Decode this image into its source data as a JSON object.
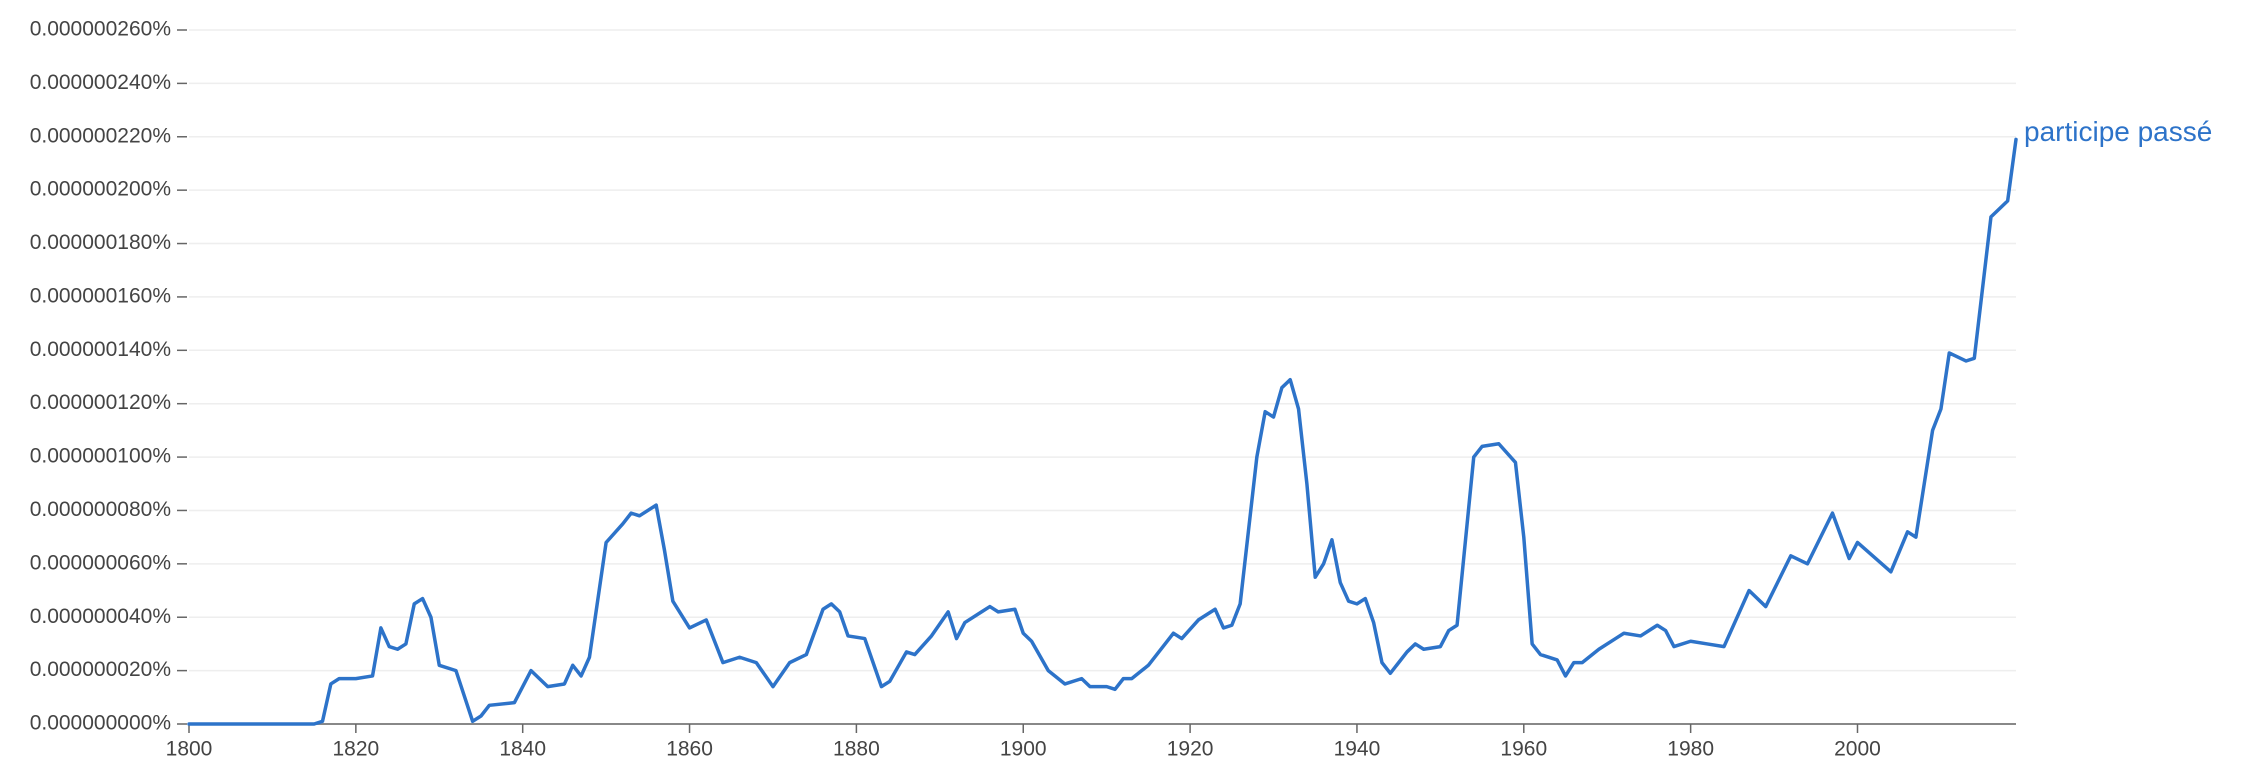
{
  "chart_data": {
    "type": "line",
    "series": [
      {
        "name": "participe passé",
        "color": "#2d73c9",
        "x": [
          1800,
          1815,
          1816,
          1817,
          1818,
          1820,
          1822,
          1823,
          1824,
          1825,
          1826,
          1827,
          1828,
          1829,
          1830,
          1832,
          1834,
          1835,
          1836,
          1839,
          1841,
          1843,
          1845,
          1846,
          1847,
          1848,
          1850,
          1852,
          1853,
          1854,
          1856,
          1857,
          1858,
          1860,
          1862,
          1864,
          1866,
          1868,
          1870,
          1872,
          1874,
          1876,
          1877,
          1878,
          1879,
          1881,
          1883,
          1884,
          1886,
          1887,
          1889,
          1891,
          1892,
          1893,
          1895,
          1896,
          1897,
          1899,
          1900,
          1901,
          1903,
          1905,
          1907,
          1908,
          1910,
          1911,
          1912,
          1913,
          1915,
          1917,
          1918,
          1919,
          1921,
          1923,
          1924,
          1925,
          1926,
          1928,
          1929,
          1930,
          1931,
          1932,
          1933,
          1934,
          1935,
          1936,
          1937,
          1938,
          1939,
          1940,
          1941,
          1942,
          1943,
          1944,
          1945,
          1946,
          1947,
          1948,
          1950,
          1951,
          1952,
          1954,
          1955,
          1957,
          1959,
          1960,
          1961,
          1962,
          1964,
          1965,
          1966,
          1967,
          1969,
          1971,
          1972,
          1974,
          1976,
          1977,
          1978,
          1980,
          1982,
          1984,
          1987,
          1989,
          1992,
          1994,
          1997,
          1999,
          2000,
          2004,
          2006,
          2007,
          2009,
          2010,
          2011,
          2013,
          2014,
          2016,
          2018,
          2019
        ],
        "values": [
          0,
          0,
          1e-09,
          1.5e-08,
          1.7e-08,
          1.7e-08,
          1.8e-08,
          3.6e-08,
          2.9e-08,
          2.8e-08,
          3e-08,
          4.5e-08,
          4.7e-08,
          4e-08,
          2.2e-08,
          2e-08,
          1e-09,
          3e-09,
          7e-09,
          8e-09,
          2e-08,
          1.4e-08,
          1.5e-08,
          2.2e-08,
          1.8e-08,
          2.5e-08,
          6.8e-08,
          7.5e-08,
          7.9e-08,
          7.8e-08,
          8.2e-08,
          6.5e-08,
          4.6e-08,
          3.6e-08,
          3.9e-08,
          2.3e-08,
          2.5e-08,
          2.3e-08,
          1.4e-08,
          2.3e-08,
          2.6e-08,
          4.3e-08,
          4.5e-08,
          4.2e-08,
          3.3e-08,
          3.2e-08,
          1.4e-08,
          1.6e-08,
          2.7e-08,
          2.6e-08,
          3.3e-08,
          4.2e-08,
          3.2e-08,
          3.8e-08,
          4.2e-08,
          4.4e-08,
          4.2e-08,
          4.3e-08,
          3.4e-08,
          3.1e-08,
          2e-08,
          1.5e-08,
          1.7e-08,
          1.4e-08,
          1.4e-08,
          1.3e-08,
          1.7e-08,
          1.7e-08,
          2.2e-08,
          3e-08,
          3.4e-08,
          3.2e-08,
          3.9e-08,
          4.3e-08,
          3.6e-08,
          3.7e-08,
          4.5e-08,
          1e-07,
          1.17e-07,
          1.15e-07,
          1.26e-07,
          1.29e-07,
          1.18e-07,
          9e-08,
          5.5e-08,
          6e-08,
          6.9e-08,
          5.3e-08,
          4.6e-08,
          4.5e-08,
          4.7e-08,
          3.8e-08,
          2.3e-08,
          1.9e-08,
          2.3e-08,
          2.7e-08,
          3e-08,
          2.8e-08,
          2.9e-08,
          3.5e-08,
          3.7e-08,
          1e-07,
          1.04e-07,
          1.05e-07,
          9.8e-08,
          7e-08,
          3e-08,
          2.6e-08,
          2.4e-08,
          1.8e-08,
          2.3e-08,
          2.3e-08,
          2.8e-08,
          3.2e-08,
          3.4e-08,
          3.3e-08,
          3.7e-08,
          3.5e-08,
          2.9e-08,
          3.1e-08,
          3e-08,
          2.9e-08,
          5e-08,
          4.4e-08,
          6.3e-08,
          6e-08,
          7.9e-08,
          6.2e-08,
          6.8e-08,
          5.7e-08,
          7.2e-08,
          7e-08,
          1.1e-07,
          1.18e-07,
          1.39e-07,
          1.36e-07,
          1.37e-07,
          1.9e-07,
          1.96e-07,
          2.19e-07
        ]
      }
    ],
    "xlim": [
      1800,
      2019
    ],
    "xticks": [
      1800,
      1820,
      1840,
      1860,
      1880,
      1900,
      1920,
      1940,
      1960,
      1980,
      2000
    ],
    "ylim": [
      0,
      2.6e-07
    ],
    "yticks": [
      {
        "value": 0,
        "label": "0.000000000%"
      },
      {
        "value": 2e-08,
        "label": "0.000000020%"
      },
      {
        "value": 4e-08,
        "label": "0.000000040%"
      },
      {
        "value": 6e-08,
        "label": "0.000000060%"
      },
      {
        "value": 8e-08,
        "label": "0.000000080%"
      },
      {
        "value": 1e-07,
        "label": "0.000000100%"
      },
      {
        "value": 1.2e-07,
        "label": "0.000000120%"
      },
      {
        "value": 1.4e-07,
        "label": "0.000000140%"
      },
      {
        "value": 1.6e-07,
        "label": "0.000000160%"
      },
      {
        "value": 1.8e-07,
        "label": "0.000000180%"
      },
      {
        "value": 2e-07,
        "label": "0.000000200%"
      },
      {
        "value": 2.2e-07,
        "label": "0.000000220%"
      },
      {
        "value": 2.4e-07,
        "label": "0.000000240%"
      },
      {
        "value": 2.6e-07,
        "label": "0.000000260%"
      }
    ],
    "grid": true
  }
}
